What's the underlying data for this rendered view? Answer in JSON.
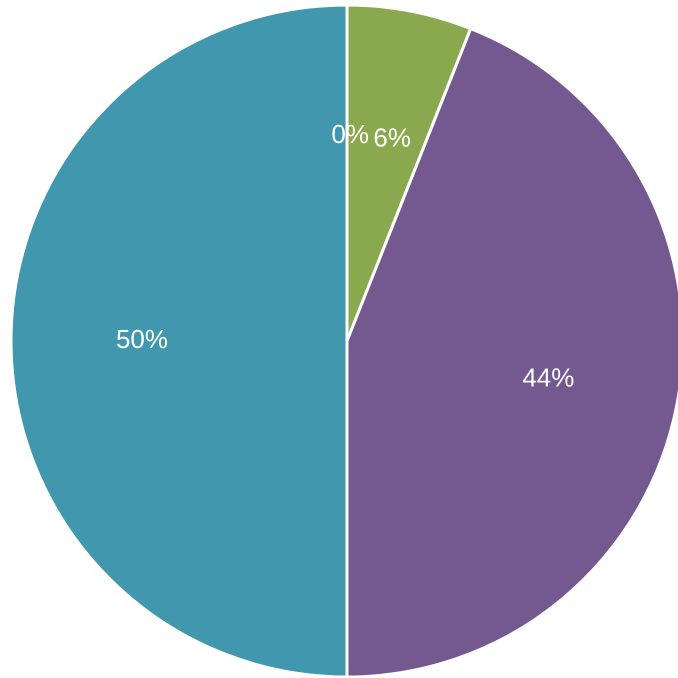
{
  "chart_data": {
    "type": "pie",
    "title": "",
    "slices": [
      {
        "value": 0,
        "label": "0%",
        "color": "#a8c47d"
      },
      {
        "value": 6,
        "label": "6%",
        "color": "#8aa84e"
      },
      {
        "value": 44,
        "label": "44%",
        "color": "#73598f"
      },
      {
        "value": 50,
        "label": "50%",
        "color": "#4197ad"
      }
    ],
    "legend": "none",
    "start_angle_degrees": 0,
    "direction": "clockwise"
  }
}
